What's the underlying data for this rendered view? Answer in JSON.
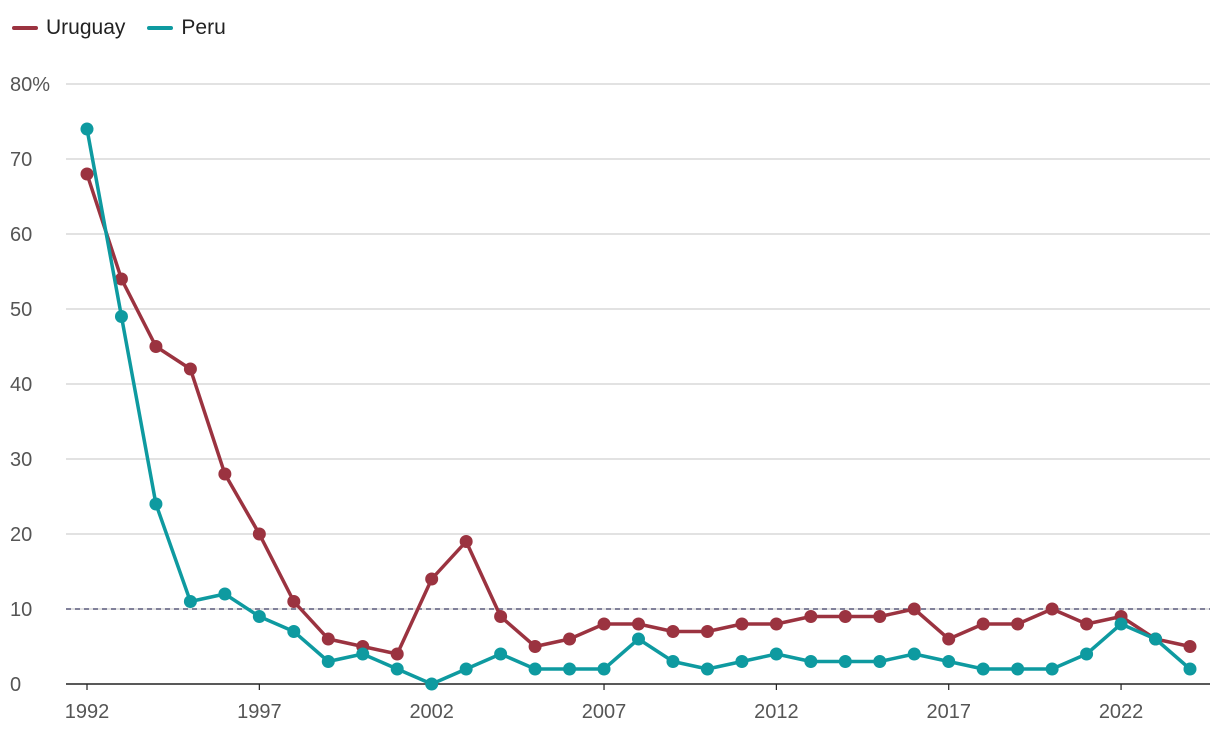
{
  "chart_data": {
    "type": "line",
    "x": [
      1992,
      1993,
      1994,
      1995,
      1996,
      1997,
      1998,
      1999,
      2000,
      2001,
      2002,
      2003,
      2004,
      2005,
      2006,
      2007,
      2008,
      2009,
      2010,
      2011,
      2012,
      2013,
      2014,
      2015,
      2016,
      2017,
      2018,
      2019,
      2020,
      2021,
      2022,
      2023,
      2024
    ],
    "series": [
      {
        "name": "Uruguay",
        "color": "#9b3340",
        "values": [
          68,
          54,
          45,
          42,
          28,
          20,
          11,
          6,
          5,
          4,
          14,
          19,
          9,
          5,
          6,
          8,
          8,
          7,
          7,
          8,
          8,
          9,
          9,
          9,
          10,
          6,
          8,
          8,
          10,
          8,
          9,
          6,
          5
        ]
      },
      {
        "name": "Peru",
        "color": "#0e9aa0",
        "values": [
          74,
          49,
          24,
          11,
          12,
          9,
          7,
          3,
          4,
          2,
          0,
          2,
          4,
          2,
          2,
          2,
          6,
          3,
          2,
          3,
          4,
          3,
          3,
          3,
          4,
          3,
          2,
          2,
          2,
          4,
          8,
          6,
          2
        ]
      }
    ],
    "xticks": [
      "1992",
      "1997",
      "2002",
      "2007",
      "2012",
      "2017",
      "2022"
    ],
    "yticks": [
      "0",
      "10",
      "20",
      "30",
      "40",
      "50",
      "60",
      "70",
      "80%"
    ],
    "ylim": [
      0,
      80
    ],
    "xlim": [
      1992,
      2024
    ],
    "reference_line": {
      "value": 10,
      "color": "#3d3d66",
      "style": "dashed"
    },
    "grid": true,
    "legend_position": "top-left"
  }
}
